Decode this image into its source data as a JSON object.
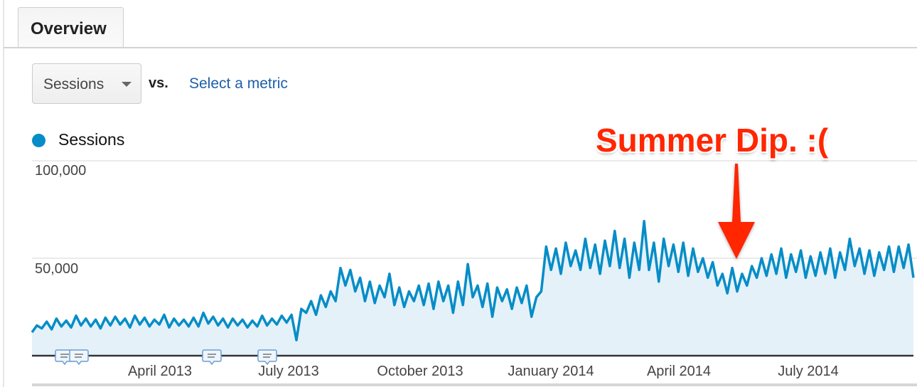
{
  "tab": {
    "label": "Overview"
  },
  "controls": {
    "metric_select": "Sessions",
    "vs_label": "vs.",
    "compare_link": "Select a metric"
  },
  "legend": {
    "label": "Sessions",
    "color": "#058dc7"
  },
  "annotation": {
    "text": "Summer Dip. :(",
    "color": "#ff2600"
  },
  "chart_data": {
    "type": "area",
    "legend_position": "top-left",
    "grid": true,
    "ylim": [
      0,
      100000
    ],
    "yticks": [
      "100,000",
      "50,000"
    ],
    "xticks": [
      "April 2013",
      "July 2013",
      "October 2013",
      "January 2014",
      "April 2014",
      "July 2014"
    ],
    "x_range": [
      "2013-01-01",
      "2014-09-15"
    ],
    "line_color": "#058dc7",
    "fill_color": "#e5f1f9",
    "series": [
      {
        "name": "Sessions",
        "values": [
          12000,
          15500,
          14000,
          17500,
          13500,
          19000,
          15000,
          18000,
          14500,
          20500,
          15500,
          19000,
          15000,
          18500,
          14000,
          19500,
          15500,
          20000,
          16000,
          19000,
          14500,
          20500,
          16000,
          19500,
          15000,
          18500,
          16000,
          21000,
          14500,
          19000,
          15500,
          18500,
          15000,
          19500,
          15000,
          22000,
          16500,
          20000,
          15500,
          19000,
          14500,
          19000,
          15500,
          18500,
          14500,
          18000,
          15000,
          20500,
          15500,
          19000,
          16000,
          20500,
          17000,
          21000,
          8000,
          24000,
          22000,
          28000,
          21000,
          31000,
          25000,
          33000,
          28000,
          45000,
          36000,
          44000,
          33000,
          40000,
          28000,
          38000,
          27000,
          36000,
          30000,
          42000,
          26000,
          35000,
          25000,
          33000,
          28000,
          36000,
          26000,
          37000,
          24000,
          38000,
          28000,
          36000,
          22000,
          38000,
          26000,
          47000,
          30000,
          36000,
          25000,
          37000,
          20000,
          35000,
          28000,
          34000,
          24000,
          35000,
          27000,
          36000,
          20000,
          30000,
          33000,
          56000,
          44000,
          55000,
          42000,
          58000,
          46000,
          54000,
          44000,
          60000,
          45000,
          57000,
          42000,
          59000,
          46000,
          64000,
          45000,
          60000,
          40000,
          58000,
          44000,
          69000,
          44000,
          58000,
          38000,
          60000,
          46000,
          57000,
          43000,
          58000,
          41000,
          55000,
          43000,
          50000,
          40000,
          48000,
          36000,
          42000,
          32000,
          45000,
          33000,
          42000,
          36000,
          46000,
          40000,
          50000,
          41000,
          52000,
          42000,
          55000,
          40000,
          52000,
          43000,
          54000,
          40000,
          51000,
          41000,
          53000,
          42000,
          55000,
          40000,
          53000,
          44000,
          60000,
          46000,
          55000,
          42000,
          54000,
          41000,
          53000,
          44000,
          56000,
          43000,
          56000,
          45000,
          57000,
          40000
        ]
      }
    ],
    "annotation_markers": 4
  }
}
